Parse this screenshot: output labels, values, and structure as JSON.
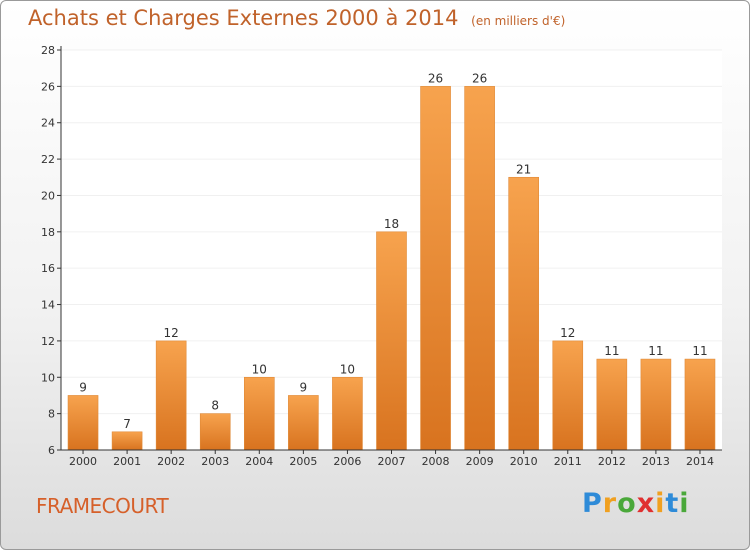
{
  "header": {
    "title": "Achats et Charges Externes 2000 à 2014",
    "subtitle": "(en milliers d'€)"
  },
  "footer": {
    "commune": "FRAMECOURT",
    "logo_letters": [
      "P",
      "r",
      "o",
      "x",
      "i",
      "t",
      "i"
    ],
    "logo_colors": [
      "#2e8bd8",
      "#f0a020",
      "#4aa83a",
      "#e03030",
      "#f0a020",
      "#2e8bd8",
      "#4aa83a"
    ]
  },
  "colors": {
    "bar_top": "#f7a34e",
    "bar_bottom": "#d8731f",
    "axis": "#333333",
    "grid": "#f0f0f0",
    "title": "#c0622a"
  },
  "chart_data": {
    "type": "bar",
    "title": "Achats et Charges Externes 2000 à 2014",
    "subtitle": "(en milliers d'€)",
    "categories": [
      "2000",
      "2001",
      "2002",
      "2003",
      "2004",
      "2005",
      "2006",
      "2007",
      "2008",
      "2009",
      "2010",
      "2011",
      "2012",
      "2013",
      "2014"
    ],
    "values": [
      9,
      7,
      12,
      8,
      10,
      9,
      10,
      18,
      26,
      26,
      21,
      12,
      11,
      11,
      11
    ],
    "ylim": [
      6,
      28
    ],
    "yticks": [
      6,
      8,
      10,
      12,
      14,
      16,
      18,
      20,
      22,
      24,
      26,
      28
    ],
    "grid": true,
    "legend": "none"
  }
}
